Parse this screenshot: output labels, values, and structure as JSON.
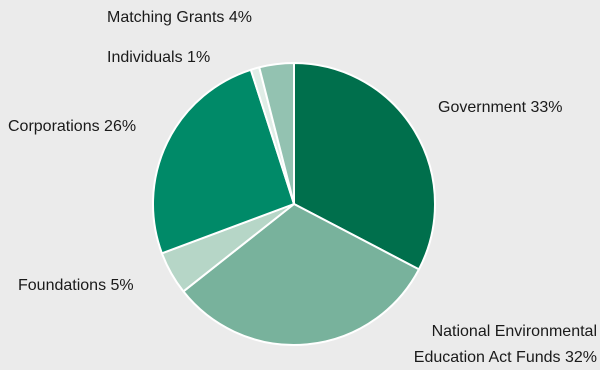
{
  "chart_data": {
    "type": "pie",
    "slices": [
      {
        "label": "Government",
        "value": 33,
        "color": "#006f4c"
      },
      {
        "label": "National Environmental Education Act Funds",
        "value": 32,
        "color": "#78b29c"
      },
      {
        "label": "Foundations",
        "value": 5,
        "color": "#b6d6c7"
      },
      {
        "label": "Corporations",
        "value": 26,
        "color": "#008a68"
      },
      {
        "label": "Individuals",
        "value": 1,
        "color": "#e0ede7"
      },
      {
        "label": "Matching Grants",
        "value": 4,
        "color": "#93c2b1"
      }
    ],
    "labels": {
      "government": "Government 33%",
      "neea_line1": "National Environmental",
      "neea_line2": "Education Act Funds 32%",
      "foundations": "Foundations 5%",
      "corporations": "Corporations 26%",
      "individuals": "Individuals 1%",
      "matching": "Matching Grants 4%"
    },
    "start": "12 o'clock",
    "direction": "clockwise",
    "slice_border_color": "#ffffff"
  }
}
